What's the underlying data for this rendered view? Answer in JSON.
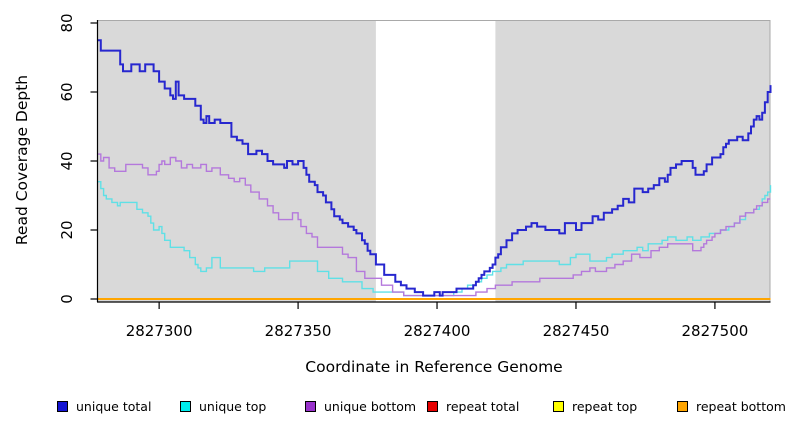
{
  "chart_data": {
    "type": "line",
    "step": true,
    "title": "",
    "xlabel": "Coordinate in Reference Genome",
    "ylabel": "Read Coverage Depth",
    "xlim": [
      2827278,
      2827520
    ],
    "ylim": [
      0,
      80
    ],
    "x_ticks": [
      2827300,
      2827350,
      2827400,
      2827450,
      2827500
    ],
    "y_ticks": [
      0,
      20,
      40,
      60,
      80
    ],
    "grid": false,
    "panel_bg": "#d9d9d9",
    "panel_border": "#a9a9a9",
    "axis_color": "#000000",
    "highlight_band": {
      "x0": 2827378,
      "x1": 2827421,
      "color": "#ffffff"
    },
    "legend_position": "bottom",
    "legend": [
      {
        "label": "unique total",
        "color": "#1414d2"
      },
      {
        "label": "unique top",
        "color": "#00eeee"
      },
      {
        "label": "unique bottom",
        "color": "#9932cc"
      },
      {
        "label": "repeat total",
        "color": "#e60000"
      },
      {
        "label": "repeat top",
        "color": "#ffff00"
      },
      {
        "label": "repeat bottom",
        "color": "#ffa500"
      }
    ],
    "series": [
      {
        "name": "repeat total",
        "color": "#e60000",
        "width": 1.5,
        "points": [
          [
            2827278,
            0
          ],
          [
            2827520,
            0
          ]
        ]
      },
      {
        "name": "repeat top",
        "color": "#ffff00",
        "width": 1.5,
        "points": [
          [
            2827278,
            0
          ],
          [
            2827520,
            0
          ]
        ]
      },
      {
        "name": "repeat bottom",
        "color": "#ffa500",
        "width": 2,
        "points": [
          [
            2827278,
            0
          ],
          [
            2827520,
            0
          ]
        ]
      },
      {
        "name": "unique top",
        "color": "#5fe0e6",
        "width": 1.4,
        "points": [
          [
            2827278,
            34
          ],
          [
            2827279,
            32
          ],
          [
            2827280,
            30
          ],
          [
            2827281,
            29
          ],
          [
            2827283,
            28
          ],
          [
            2827285,
            27
          ],
          [
            2827286,
            28
          ],
          [
            2827292,
            26
          ],
          [
            2827294,
            25
          ],
          [
            2827296,
            24
          ],
          [
            2827297,
            22
          ],
          [
            2827298,
            20
          ],
          [
            2827300,
            21
          ],
          [
            2827301,
            19
          ],
          [
            2827302,
            17
          ],
          [
            2827304,
            15
          ],
          [
            2827309,
            14
          ],
          [
            2827311,
            12
          ],
          [
            2827313,
            10
          ],
          [
            2827314,
            9
          ],
          [
            2827315,
            8
          ],
          [
            2827317,
            9
          ],
          [
            2827319,
            12
          ],
          [
            2827322,
            9
          ],
          [
            2827334,
            8
          ],
          [
            2827338,
            9
          ],
          [
            2827347,
            11
          ],
          [
            2827357,
            8
          ],
          [
            2827361,
            6
          ],
          [
            2827366,
            5
          ],
          [
            2827373,
            3
          ],
          [
            2827377,
            2
          ],
          [
            2827388,
            1
          ],
          [
            2827406,
            2
          ],
          [
            2827409,
            3
          ],
          [
            2827411,
            4
          ],
          [
            2827414,
            5
          ],
          [
            2827416,
            6
          ],
          [
            2827418,
            7
          ],
          [
            2827420,
            8
          ],
          [
            2827423,
            9
          ],
          [
            2827425,
            10
          ],
          [
            2827431,
            11
          ],
          [
            2827444,
            10
          ],
          [
            2827448,
            12
          ],
          [
            2827450,
            13
          ],
          [
            2827455,
            11
          ],
          [
            2827461,
            12
          ],
          [
            2827463,
            13
          ],
          [
            2827467,
            14
          ],
          [
            2827472,
            15
          ],
          [
            2827474,
            14
          ],
          [
            2827476,
            16
          ],
          [
            2827481,
            17
          ],
          [
            2827483,
            18
          ],
          [
            2827486,
            17
          ],
          [
            2827490,
            18
          ],
          [
            2827492,
            17
          ],
          [
            2827495,
            18
          ],
          [
            2827498,
            19
          ],
          [
            2827502,
            20
          ],
          [
            2827505,
            21
          ],
          [
            2827507,
            22
          ],
          [
            2827509,
            23
          ],
          [
            2827511,
            25
          ],
          [
            2827514,
            26
          ],
          [
            2827516,
            27
          ],
          [
            2827517,
            29
          ],
          [
            2827518,
            30
          ],
          [
            2827519,
            31
          ],
          [
            2827520,
            33
          ]
        ]
      },
      {
        "name": "unique bottom",
        "color": "#b478dc",
        "width": 1.4,
        "points": [
          [
            2827278,
            42
          ],
          [
            2827279,
            40
          ],
          [
            2827280,
            41
          ],
          [
            2827282,
            38
          ],
          [
            2827284,
            37
          ],
          [
            2827288,
            39
          ],
          [
            2827294,
            38
          ],
          [
            2827296,
            36
          ],
          [
            2827299,
            37
          ],
          [
            2827300,
            39
          ],
          [
            2827301,
            40
          ],
          [
            2827302,
            39
          ],
          [
            2827304,
            41
          ],
          [
            2827306,
            40
          ],
          [
            2827308,
            38
          ],
          [
            2827310,
            39
          ],
          [
            2827312,
            38
          ],
          [
            2827315,
            39
          ],
          [
            2827317,
            37
          ],
          [
            2827319,
            38
          ],
          [
            2827322,
            36
          ],
          [
            2827325,
            35
          ],
          [
            2827327,
            34
          ],
          [
            2827329,
            35
          ],
          [
            2827331,
            33
          ],
          [
            2827333,
            31
          ],
          [
            2827336,
            29
          ],
          [
            2827339,
            27
          ],
          [
            2827341,
            25
          ],
          [
            2827343,
            23
          ],
          [
            2827348,
            25
          ],
          [
            2827350,
            23
          ],
          [
            2827351,
            21
          ],
          [
            2827353,
            19
          ],
          [
            2827355,
            18
          ],
          [
            2827357,
            15
          ],
          [
            2827366,
            13
          ],
          [
            2827368,
            12
          ],
          [
            2827371,
            8
          ],
          [
            2827374,
            6
          ],
          [
            2827380,
            4
          ],
          [
            2827384,
            2
          ],
          [
            2827388,
            1
          ],
          [
            2827414,
            2
          ],
          [
            2827418,
            3
          ],
          [
            2827421,
            4
          ],
          [
            2827427,
            5
          ],
          [
            2827437,
            6
          ],
          [
            2827449,
            7
          ],
          [
            2827452,
            8
          ],
          [
            2827455,
            9
          ],
          [
            2827457,
            8
          ],
          [
            2827461,
            9
          ],
          [
            2827464,
            10
          ],
          [
            2827467,
            11
          ],
          [
            2827470,
            13
          ],
          [
            2827473,
            12
          ],
          [
            2827477,
            14
          ],
          [
            2827480,
            15
          ],
          [
            2827483,
            16
          ],
          [
            2827492,
            14
          ],
          [
            2827495,
            15
          ],
          [
            2827496,
            16
          ],
          [
            2827497,
            17
          ],
          [
            2827499,
            18
          ],
          [
            2827500,
            19
          ],
          [
            2827502,
            20
          ],
          [
            2827504,
            21
          ],
          [
            2827507,
            22
          ],
          [
            2827509,
            24
          ],
          [
            2827511,
            25
          ],
          [
            2827514,
            26
          ],
          [
            2827515,
            27
          ],
          [
            2827517,
            28
          ],
          [
            2827519,
            29
          ],
          [
            2827520,
            29
          ]
        ]
      },
      {
        "name": "unique total",
        "color": "#2727cf",
        "width": 2,
        "points": [
          [
            2827278,
            75
          ],
          [
            2827279,
            72
          ],
          [
            2827286,
            68
          ],
          [
            2827287,
            66
          ],
          [
            2827290,
            68
          ],
          [
            2827293,
            66
          ],
          [
            2827295,
            68
          ],
          [
            2827298,
            66
          ],
          [
            2827300,
            63
          ],
          [
            2827302,
            61
          ],
          [
            2827304,
            59
          ],
          [
            2827305,
            58
          ],
          [
            2827306,
            63
          ],
          [
            2827307,
            59
          ],
          [
            2827309,
            58
          ],
          [
            2827313,
            56
          ],
          [
            2827315,
            52
          ],
          [
            2827316,
            51
          ],
          [
            2827317,
            53
          ],
          [
            2827318,
            51
          ],
          [
            2827320,
            52
          ],
          [
            2827322,
            51
          ],
          [
            2827326,
            47
          ],
          [
            2827328,
            46
          ],
          [
            2827330,
            45
          ],
          [
            2827332,
            42
          ],
          [
            2827335,
            43
          ],
          [
            2827337,
            42
          ],
          [
            2827339,
            40
          ],
          [
            2827341,
            39
          ],
          [
            2827345,
            38
          ],
          [
            2827346,
            40
          ],
          [
            2827348,
            39
          ],
          [
            2827350,
            40
          ],
          [
            2827352,
            38
          ],
          [
            2827353,
            36
          ],
          [
            2827354,
            34
          ],
          [
            2827356,
            33
          ],
          [
            2827357,
            31
          ],
          [
            2827359,
            30
          ],
          [
            2827360,
            28
          ],
          [
            2827362,
            26
          ],
          [
            2827363,
            24
          ],
          [
            2827365,
            23
          ],
          [
            2827366,
            22
          ],
          [
            2827368,
            21
          ],
          [
            2827370,
            20
          ],
          [
            2827371,
            19
          ],
          [
            2827373,
            17
          ],
          [
            2827374,
            16
          ],
          [
            2827375,
            14
          ],
          [
            2827376,
            13
          ],
          [
            2827378,
            10
          ],
          [
            2827381,
            7
          ],
          [
            2827385,
            5
          ],
          [
            2827387,
            4
          ],
          [
            2827389,
            3
          ],
          [
            2827392,
            2
          ],
          [
            2827395,
            1
          ],
          [
            2827399,
            2
          ],
          [
            2827401,
            1
          ],
          [
            2827402,
            2
          ],
          [
            2827407,
            3
          ],
          [
            2827413,
            4
          ],
          [
            2827414,
            5
          ],
          [
            2827415,
            6
          ],
          [
            2827416,
            7
          ],
          [
            2827417,
            8
          ],
          [
            2827419,
            9
          ],
          [
            2827420,
            10
          ],
          [
            2827421,
            12
          ],
          [
            2827422,
            13
          ],
          [
            2827423,
            15
          ],
          [
            2827425,
            17
          ],
          [
            2827427,
            19
          ],
          [
            2827429,
            20
          ],
          [
            2827432,
            21
          ],
          [
            2827434,
            22
          ],
          [
            2827436,
            21
          ],
          [
            2827439,
            20
          ],
          [
            2827444,
            19
          ],
          [
            2827446,
            22
          ],
          [
            2827450,
            20
          ],
          [
            2827452,
            22
          ],
          [
            2827456,
            24
          ],
          [
            2827458,
            23
          ],
          [
            2827460,
            25
          ],
          [
            2827463,
            26
          ],
          [
            2827465,
            27
          ],
          [
            2827467,
            29
          ],
          [
            2827469,
            28
          ],
          [
            2827471,
            32
          ],
          [
            2827474,
            31
          ],
          [
            2827476,
            32
          ],
          [
            2827478,
            33
          ],
          [
            2827480,
            35
          ],
          [
            2827482,
            34
          ],
          [
            2827483,
            36
          ],
          [
            2827484,
            38
          ],
          [
            2827486,
            39
          ],
          [
            2827488,
            40
          ],
          [
            2827492,
            38
          ],
          [
            2827493,
            36
          ],
          [
            2827496,
            37
          ],
          [
            2827497,
            39
          ],
          [
            2827499,
            41
          ],
          [
            2827502,
            42
          ],
          [
            2827503,
            44
          ],
          [
            2827504,
            45
          ],
          [
            2827505,
            46
          ],
          [
            2827508,
            47
          ],
          [
            2827510,
            46
          ],
          [
            2827512,
            48
          ],
          [
            2827513,
            50
          ],
          [
            2827514,
            52
          ],
          [
            2827515,
            53
          ],
          [
            2827516,
            52
          ],
          [
            2827517,
            54
          ],
          [
            2827518,
            57
          ],
          [
            2827519,
            60
          ],
          [
            2827520,
            62
          ]
        ]
      }
    ]
  }
}
